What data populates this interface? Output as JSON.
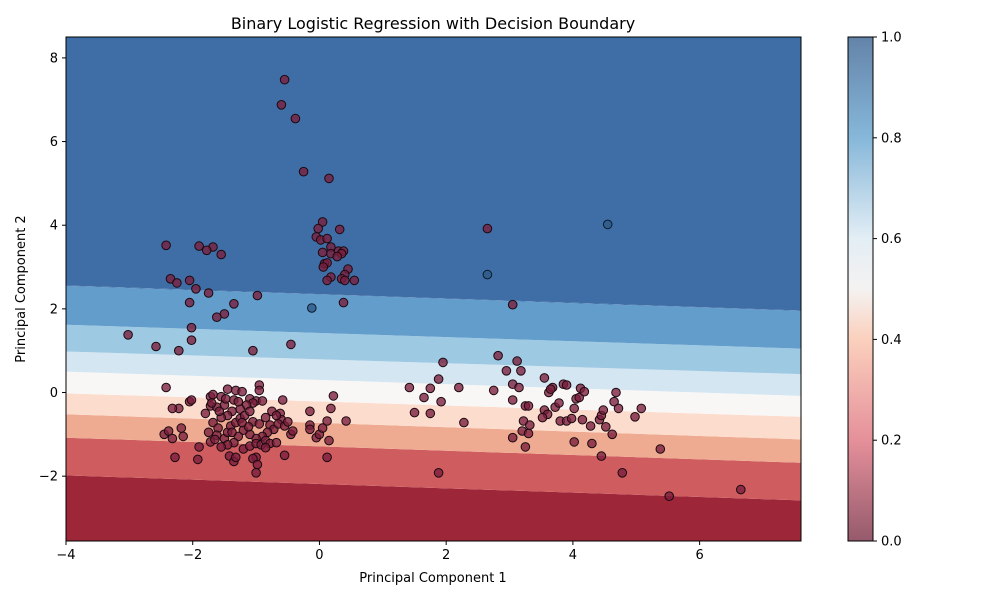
{
  "chart_data": {
    "type": "scatter",
    "title": "Binary Logistic Regression with Decision Boundary",
    "xlabel": "Principal Component 1",
    "ylabel": "Principal Component 2",
    "xlim": [
      -4.0,
      7.6
    ],
    "ylim": [
      -3.55,
      8.5
    ],
    "xticks": [
      -4,
      -2,
      0,
      2,
      4,
      6
    ],
    "yticks": [
      -2,
      0,
      2,
      4,
      6,
      8
    ],
    "xtick_labels": [
      "−4",
      "−2",
      "0",
      "2",
      "4",
      "6"
    ],
    "ytick_labels": [
      "−2",
      "0",
      "2",
      "4",
      "6",
      "8"
    ],
    "grid": false,
    "decision_surface": {
      "kind": "filled-contour",
      "cmap": "RdBu",
      "alpha": 0.8,
      "levels": [
        0.0,
        0.1,
        0.2,
        0.3,
        0.4,
        0.5,
        0.6,
        0.7,
        0.8,
        0.9,
        1.0
      ],
      "level_colors": [
        "#9e2639",
        "#cf5d5f",
        "#efab91",
        "#fcdccd",
        "#f9f7f6",
        "#d4e6f1",
        "#9ec9e3",
        "#629dcc",
        "#3870ac",
        "#3f6ea6"
      ],
      "boundary_lines": [
        {
          "p": 0.1,
          "y_at_xmin": -1.98,
          "y_at_xmax": -2.58
        },
        {
          "p": 0.2,
          "y_at_xmin": -1.08,
          "y_at_xmax": -1.68
        },
        {
          "p": 0.3,
          "y_at_xmin": -0.52,
          "y_at_xmax": -1.12
        },
        {
          "p": 0.4,
          "y_at_xmin": -0.02,
          "y_at_xmax": -0.58
        },
        {
          "p": 0.5,
          "y_at_xmin": 0.5,
          "y_at_xmax": -0.08
        },
        {
          "p": 0.6,
          "y_at_xmin": 0.98,
          "y_at_xmax": 0.44
        },
        {
          "p": 0.7,
          "y_at_xmin": 1.62,
          "y_at_xmax": 1.05
        },
        {
          "p": 0.8,
          "y_at_xmin": 2.55,
          "y_at_xmax": 1.95
        },
        {
          "p": 0.9,
          "y_at_xmin": 2.56,
          "y_at_xmax": 1.96
        }
      ]
    },
    "colorbar": {
      "ticks": [
        0.0,
        0.2,
        0.4,
        0.6,
        0.8,
        1.0
      ],
      "tick_labels": [
        "0.0",
        "0.2",
        "0.4",
        "0.6",
        "0.8",
        "1.0"
      ],
      "stops": [
        {
          "v": 0.0,
          "color": "#955a6c"
        },
        {
          "v": 0.2,
          "color": "#e5909a"
        },
        {
          "v": 0.4,
          "color": "#fbd0bd"
        },
        {
          "v": 0.5,
          "color": "#f4f2f1"
        },
        {
          "v": 0.6,
          "color": "#e3eef5"
        },
        {
          "v": 0.8,
          "color": "#86b7d9"
        },
        {
          "v": 1.0,
          "color": "#6384a9"
        }
      ]
    },
    "series": [
      {
        "marker_color": "#7a1e3c",
        "marker_edge": "#1a0a10",
        "points": [
          [
            -0.55,
            7.48
          ],
          [
            -0.6,
            6.88
          ],
          [
            -0.38,
            6.55
          ],
          [
            -0.25,
            5.28
          ],
          [
            0.15,
            5.12
          ],
          [
            0.05,
            4.08
          ],
          [
            -0.02,
            3.92
          ],
          [
            0.32,
            3.9
          ],
          [
            2.65,
            3.92
          ],
          [
            -0.05,
            3.72
          ],
          [
            0.02,
            3.65
          ],
          [
            0.12,
            3.68
          ],
          [
            0.18,
            3.48
          ],
          [
            0.05,
            3.35
          ],
          [
            0.18,
            3.32
          ],
          [
            0.3,
            3.38
          ],
          [
            0.38,
            3.38
          ],
          [
            0.35,
            3.32
          ],
          [
            0.08,
            3.08
          ],
          [
            0.12,
            3.1
          ],
          [
            0.06,
            3.0
          ],
          [
            0.28,
            3.25
          ],
          [
            0.45,
            2.95
          ],
          [
            0.4,
            2.82
          ],
          [
            0.18,
            2.76
          ],
          [
            0.12,
            2.68
          ],
          [
            0.35,
            2.72
          ],
          [
            0.4,
            2.68
          ],
          [
            0.55,
            2.68
          ],
          [
            0.38,
            2.15
          ],
          [
            -2.42,
            3.52
          ],
          [
            -1.9,
            3.5
          ],
          [
            -1.68,
            3.48
          ],
          [
            -1.78,
            3.4
          ],
          [
            -1.55,
            3.3
          ],
          [
            -2.35,
            2.72
          ],
          [
            -2.25,
            2.62
          ],
          [
            -2.05,
            2.68
          ],
          [
            -1.95,
            2.48
          ],
          [
            -1.75,
            2.38
          ],
          [
            -2.05,
            2.15
          ],
          [
            -1.35,
            2.12
          ],
          [
            -1.5,
            1.88
          ],
          [
            -1.62,
            1.8
          ],
          [
            -0.98,
            2.32
          ],
          [
            -2.02,
            1.55
          ],
          [
            -2.02,
            1.25
          ],
          [
            -3.02,
            1.38
          ],
          [
            -2.58,
            1.1
          ],
          [
            -2.22,
            1.0
          ],
          [
            -1.05,
            1.0
          ],
          [
            -0.45,
            1.15
          ],
          [
            3.05,
            2.1
          ],
          [
            -2.42,
            0.12
          ],
          [
            -2.22,
            -0.38
          ],
          [
            -2.32,
            -0.38
          ],
          [
            -2.18,
            -0.85
          ],
          [
            -2.32,
            -1.1
          ],
          [
            -2.45,
            -1.0
          ],
          [
            -2.38,
            -0.92
          ],
          [
            -2.15,
            -1.05
          ],
          [
            -2.05,
            -0.22
          ],
          [
            -2.02,
            -0.18
          ],
          [
            -2.28,
            -1.55
          ],
          [
            -1.92,
            -1.6
          ],
          [
            -1.9,
            -1.3
          ],
          [
            -1.72,
            -1.18
          ],
          [
            -1.8,
            -0.5
          ],
          [
            -1.72,
            -0.32
          ],
          [
            -1.72,
            -0.1
          ],
          [
            -1.68,
            -0.05
          ],
          [
            -1.55,
            -0.1
          ],
          [
            -1.45,
            0.08
          ],
          [
            -1.32,
            0.05
          ],
          [
            -1.22,
            0.02
          ],
          [
            -1.1,
            -0.15
          ],
          [
            -0.95,
            0.18
          ],
          [
            -0.95,
            0.05
          ],
          [
            -1.0,
            -0.2
          ],
          [
            -1.05,
            -0.25
          ],
          [
            -0.9,
            -0.2
          ],
          [
            -1.15,
            -0.3
          ],
          [
            -1.25,
            -0.4
          ],
          [
            -1.38,
            -0.45
          ],
          [
            -1.5,
            -0.3
          ],
          [
            -1.62,
            -0.35
          ],
          [
            -1.45,
            -0.55
          ],
          [
            -1.55,
            -0.6
          ],
          [
            -1.68,
            -0.72
          ],
          [
            -1.6,
            -0.85
          ],
          [
            -1.75,
            -0.95
          ],
          [
            -1.62,
            -1.02
          ],
          [
            -1.5,
            -1.1
          ],
          [
            -1.45,
            -0.95
          ],
          [
            -1.4,
            -0.8
          ],
          [
            -1.32,
            -0.72
          ],
          [
            -1.25,
            -0.62
          ],
          [
            -1.18,
            -0.55
          ],
          [
            -1.1,
            -0.45
          ],
          [
            -1.05,
            -0.7
          ],
          [
            -0.95,
            -0.75
          ],
          [
            -0.85,
            -0.6
          ],
          [
            -0.78,
            -0.78
          ],
          [
            -0.72,
            -0.88
          ],
          [
            -0.82,
            -0.95
          ],
          [
            -0.9,
            -1.05
          ],
          [
            -1.0,
            -1.1
          ],
          [
            -1.1,
            -1.0
          ],
          [
            -1.2,
            -0.9
          ],
          [
            -1.28,
            -1.05
          ],
          [
            -1.35,
            -1.2
          ],
          [
            -1.45,
            -1.25
          ],
          [
            -1.55,
            -1.3
          ],
          [
            -1.65,
            -1.12
          ],
          [
            -1.42,
            -1.52
          ],
          [
            -1.35,
            -1.65
          ],
          [
            -1.32,
            -1.55
          ],
          [
            -1.2,
            -1.35
          ],
          [
            -1.1,
            -1.28
          ],
          [
            -1.0,
            -1.22
          ],
          [
            -0.92,
            -1.25
          ],
          [
            -0.85,
            -1.15
          ],
          [
            -0.78,
            -1.22
          ],
          [
            -0.68,
            -1.2
          ],
          [
            -0.85,
            -1.32
          ],
          [
            -1.0,
            -1.55
          ],
          [
            -1.05,
            -1.58
          ],
          [
            -0.98,
            -1.72
          ],
          [
            -1.0,
            -1.92
          ],
          [
            -0.62,
            -0.5
          ],
          [
            -0.6,
            -0.65
          ],
          [
            -0.65,
            -0.75
          ],
          [
            -0.55,
            -0.8
          ],
          [
            -0.5,
            -0.7
          ],
          [
            -0.58,
            -0.18
          ],
          [
            -0.45,
            -1.0
          ],
          [
            -0.42,
            -0.92
          ],
          [
            -0.55,
            -1.5
          ],
          [
            -0.15,
            -0.45
          ],
          [
            -0.15,
            -0.78
          ],
          [
            -0.15,
            -0.88
          ],
          [
            -0.05,
            -1.08
          ],
          [
            0.0,
            -1.0
          ],
          [
            0.05,
            -0.85
          ],
          [
            0.12,
            -0.68
          ],
          [
            0.18,
            -0.38
          ],
          [
            0.22,
            -0.08
          ],
          [
            0.15,
            -1.15
          ],
          [
            0.12,
            -1.55
          ],
          [
            0.42,
            -0.68
          ],
          [
            -1.35,
            -0.18
          ],
          [
            -1.28,
            -0.22
          ],
          [
            -1.48,
            -0.15
          ],
          [
            -1.58,
            -0.45
          ],
          [
            -1.7,
            -0.25
          ],
          [
            -1.12,
            -0.82
          ],
          [
            -1.22,
            -0.72
          ],
          [
            -1.38,
            -0.95
          ],
          [
            -0.75,
            -0.45
          ],
          [
            -0.68,
            -0.55
          ],
          [
            1.42,
            0.12
          ],
          [
            1.5,
            -0.48
          ],
          [
            1.65,
            -0.12
          ],
          [
            1.75,
            0.1
          ],
          [
            1.75,
            -0.5
          ],
          [
            1.88,
            0.32
          ],
          [
            1.95,
            0.72
          ],
          [
            1.92,
            -0.22
          ],
          [
            2.2,
            0.12
          ],
          [
            2.28,
            -0.72
          ],
          [
            1.88,
            -1.92
          ],
          [
            2.82,
            0.88
          ],
          [
            2.75,
            0.05
          ],
          [
            2.95,
            0.52
          ],
          [
            3.05,
            0.2
          ],
          [
            3.12,
            0.75
          ],
          [
            3.15,
            0.12
          ],
          [
            3.18,
            0.52
          ],
          [
            3.05,
            -0.18
          ],
          [
            3.25,
            -0.32
          ],
          [
            3.3,
            -0.32
          ],
          [
            3.22,
            -0.68
          ],
          [
            3.32,
            -0.78
          ],
          [
            3.2,
            -0.92
          ],
          [
            3.3,
            -0.98
          ],
          [
            3.05,
            -1.08
          ],
          [
            3.25,
            -1.3
          ],
          [
            3.55,
            0.35
          ],
          [
            3.55,
            -0.42
          ],
          [
            3.6,
            -0.52
          ],
          [
            3.52,
            -0.6
          ],
          [
            3.62,
            0.0
          ],
          [
            3.68,
            0.12
          ],
          [
            3.65,
            0.08
          ],
          [
            3.72,
            -0.35
          ],
          [
            3.78,
            -0.25
          ],
          [
            3.8,
            -0.68
          ],
          [
            3.85,
            0.2
          ],
          [
            3.9,
            0.18
          ],
          [
            3.9,
            -0.68
          ],
          [
            3.98,
            -0.62
          ],
          [
            4.02,
            -0.38
          ],
          [
            4.05,
            -0.15
          ],
          [
            4.1,
            -0.12
          ],
          [
            4.12,
            0.1
          ],
          [
            4.18,
            0.02
          ],
          [
            4.15,
            -0.65
          ],
          [
            4.02,
            -1.18
          ],
          [
            4.28,
            -0.8
          ],
          [
            4.3,
            -1.22
          ],
          [
            4.42,
            -0.65
          ],
          [
            4.45,
            -0.55
          ],
          [
            4.48,
            -0.42
          ],
          [
            4.52,
            -0.82
          ],
          [
            4.45,
            -1.52
          ],
          [
            4.62,
            -1.0
          ],
          [
            4.65,
            -0.22
          ],
          [
            4.68,
            0.0
          ],
          [
            4.72,
            -0.38
          ],
          [
            4.78,
            -1.92
          ],
          [
            4.98,
            -0.58
          ],
          [
            5.08,
            -0.38
          ],
          [
            5.38,
            -1.35
          ],
          [
            5.52,
            -2.48
          ],
          [
            6.65,
            -2.32
          ]
        ]
      },
      {
        "marker_color": "#2e5a86",
        "marker_edge": "#0d1a2a",
        "points": [
          [
            4.55,
            4.02
          ],
          [
            2.65,
            2.82
          ],
          [
            -0.12,
            2.02
          ]
        ]
      }
    ]
  }
}
